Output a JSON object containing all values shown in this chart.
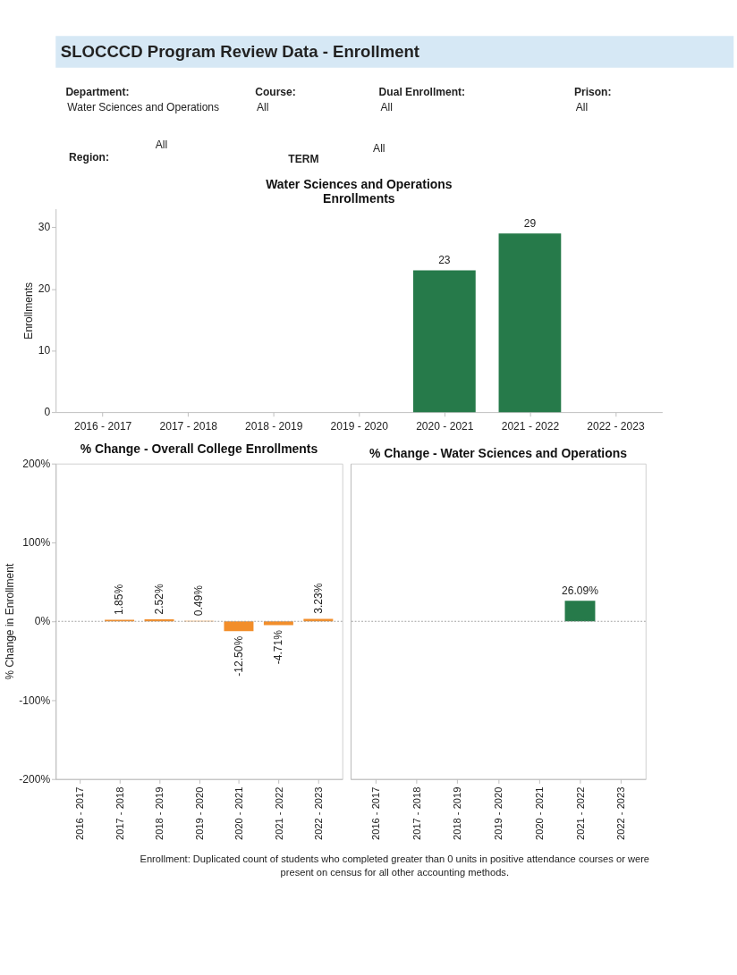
{
  "chart_data": [
    {
      "type": "other",
      "title": "SLOCCCD Program Review Data - Enrollment",
      "annotations": [
        "Department:",
        "Water Sciences and Operations",
        "Course:",
        "All",
        "Dual Enrollment:",
        "All",
        "Prison:",
        "All",
        "Region:",
        "All",
        "TERM",
        "All"
      ]
    },
    {
      "type": "bar",
      "title": "Water Sciences and Operations Enrollments",
      "ylabel": "Enrollments",
      "categories": [
        "2016 - 2017",
        "2017 - 2018",
        "2018 - 2019",
        "2019 - 2020",
        "2020 - 2021",
        "2021 - 2022",
        "2022 - 2023"
      ],
      "values": [
        null,
        null,
        null,
        null,
        23,
        29,
        null
      ],
      "color": "#267a4a",
      "ylim": [
        0,
        33
      ],
      "yticks": [
        0,
        10,
        20,
        30
      ],
      "data_labels": true,
      "grid": false
    },
    {
      "type": "bar",
      "title": "% Change - Overall College Enrollments",
      "ylabel": "% Change in Enrollment",
      "categories": [
        "2016 - 2017",
        "2017 - 2018",
        "2018 - 2019",
        "2019 - 2020",
        "2020 - 2021",
        "2021 - 2022",
        "2022 - 2023"
      ],
      "values": [
        null,
        1.85,
        2.52,
        0.49,
        -12.5,
        -4.71,
        3.23
      ],
      "value_labels": [
        null,
        "1.85%",
        "2.52%",
        "0.49%",
        "-12.50%",
        "-4.71%",
        "3.23%"
      ],
      "color": "#f28e2b",
      "ylim": [
        -200,
        200
      ],
      "yticks": [
        {
          "value": -200,
          "label": "-200%"
        },
        {
          "value": -100,
          "label": "-100%"
        },
        {
          "value": 0,
          "label": "0%"
        },
        {
          "value": 100,
          "label": "100%"
        },
        {
          "value": 200,
          "label": "200%"
        }
      ],
      "ref_lines": [
        {
          "axis": "y",
          "value": 0,
          "color": "#999999",
          "line_style": "dotted"
        }
      ],
      "grid": false
    },
    {
      "type": "bar",
      "title": "% Change - Water Sciences and Operations",
      "categories": [
        "2016 - 2017",
        "2017 - 2018",
        "2018 - 2019",
        "2019 - 2020",
        "2020 - 2021",
        "2021 - 2022",
        "2022 - 2023"
      ],
      "values": [
        null,
        null,
        null,
        null,
        null,
        26.09,
        null
      ],
      "value_labels": [
        null,
        null,
        null,
        null,
        null,
        "26.09%",
        null
      ],
      "color": "#267a4a",
      "ylim": [
        -200,
        200
      ],
      "tick_labels": "x",
      "ref_lines": [
        {
          "axis": "y",
          "value": 0,
          "color": "#999999",
          "line_style": "dotted"
        }
      ],
      "grid": false
    },
    {
      "type": "other",
      "annotations": [
        "Enrollment: Duplicated count of students who completed greater than 0 units in positive attendance courses or were present on census for all other accounting methods."
      ]
    }
  ]
}
